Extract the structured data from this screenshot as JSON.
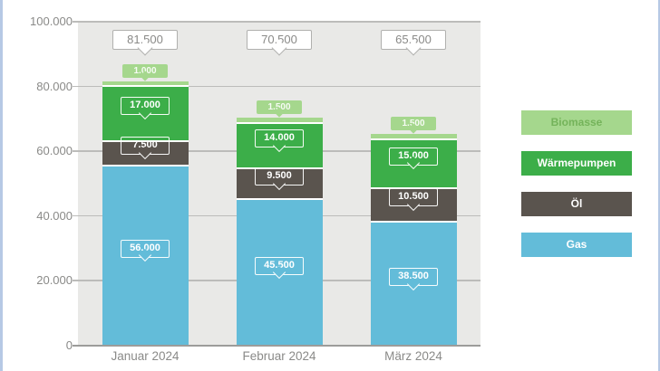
{
  "chart_data": {
    "type": "bar",
    "variant": "stacked",
    "title": "",
    "categories": [
      "Januar 2024",
      "Februar 2024",
      "März 2024"
    ],
    "series": [
      {
        "name": "Gas",
        "color": "#63bcd9",
        "values": [
          56000,
          45500,
          38500
        ],
        "label_position": "inside"
      },
      {
        "name": "Öl",
        "color": "#5a544e",
        "values": [
          7500,
          9500,
          10500
        ],
        "label_position": "inside"
      },
      {
        "name": "Wärmepumpen",
        "color": "#3cae49",
        "values": [
          17000,
          14000,
          15000
        ],
        "label_position": "inside"
      },
      {
        "name": "Biomasse",
        "color": "#a5d78d",
        "values": [
          1000,
          1500,
          1500
        ],
        "label_position": "outside"
      }
    ],
    "totals": [
      81500,
      70500,
      65500
    ],
    "total_labels": [
      "81.500",
      "70.500",
      "65.500"
    ],
    "data_labels": {
      "Gas": [
        "56.000",
        "45.500",
        "38.500"
      ],
      "Öl": [
        "7.500",
        "9.500",
        "10.500"
      ],
      "Wärmepumpen": [
        "17.000",
        "14.000",
        "15.000"
      ],
      "Biomasse": [
        "1.000",
        "1.500",
        "1.500"
      ]
    },
    "y_axis": {
      "min": 0,
      "max": 100000,
      "step": 20000,
      "tick_labels": [
        "0",
        "20.000",
        "40.000",
        "60.000",
        "80.000",
        "100.000"
      ]
    },
    "grid": true,
    "legend": {
      "position": "right",
      "items": [
        {
          "label": "Biomasse",
          "color": "#a5d78d",
          "text_color": "#74b35a"
        },
        {
          "label": "Wärmepumpen",
          "color": "#3cae49",
          "text_color": "#ffffff"
        },
        {
          "label": "Öl",
          "color": "#5a544e",
          "text_color": "#ffffff"
        },
        {
          "label": "Gas",
          "color": "#63bcd9",
          "text_color": "#ffffff"
        }
      ]
    },
    "number_format": "de"
  },
  "theme": {
    "page_bg": "#ffffff",
    "plot_bg": "#e9e9e7",
    "grid_color": "#bcbcba",
    "axis_color": "#9c9c9a",
    "text_color": "#8a8a88",
    "callout_border": "#b0b0ae",
    "callout_bg": "#ffffff",
    "window_edge": "#b6c9e5"
  }
}
